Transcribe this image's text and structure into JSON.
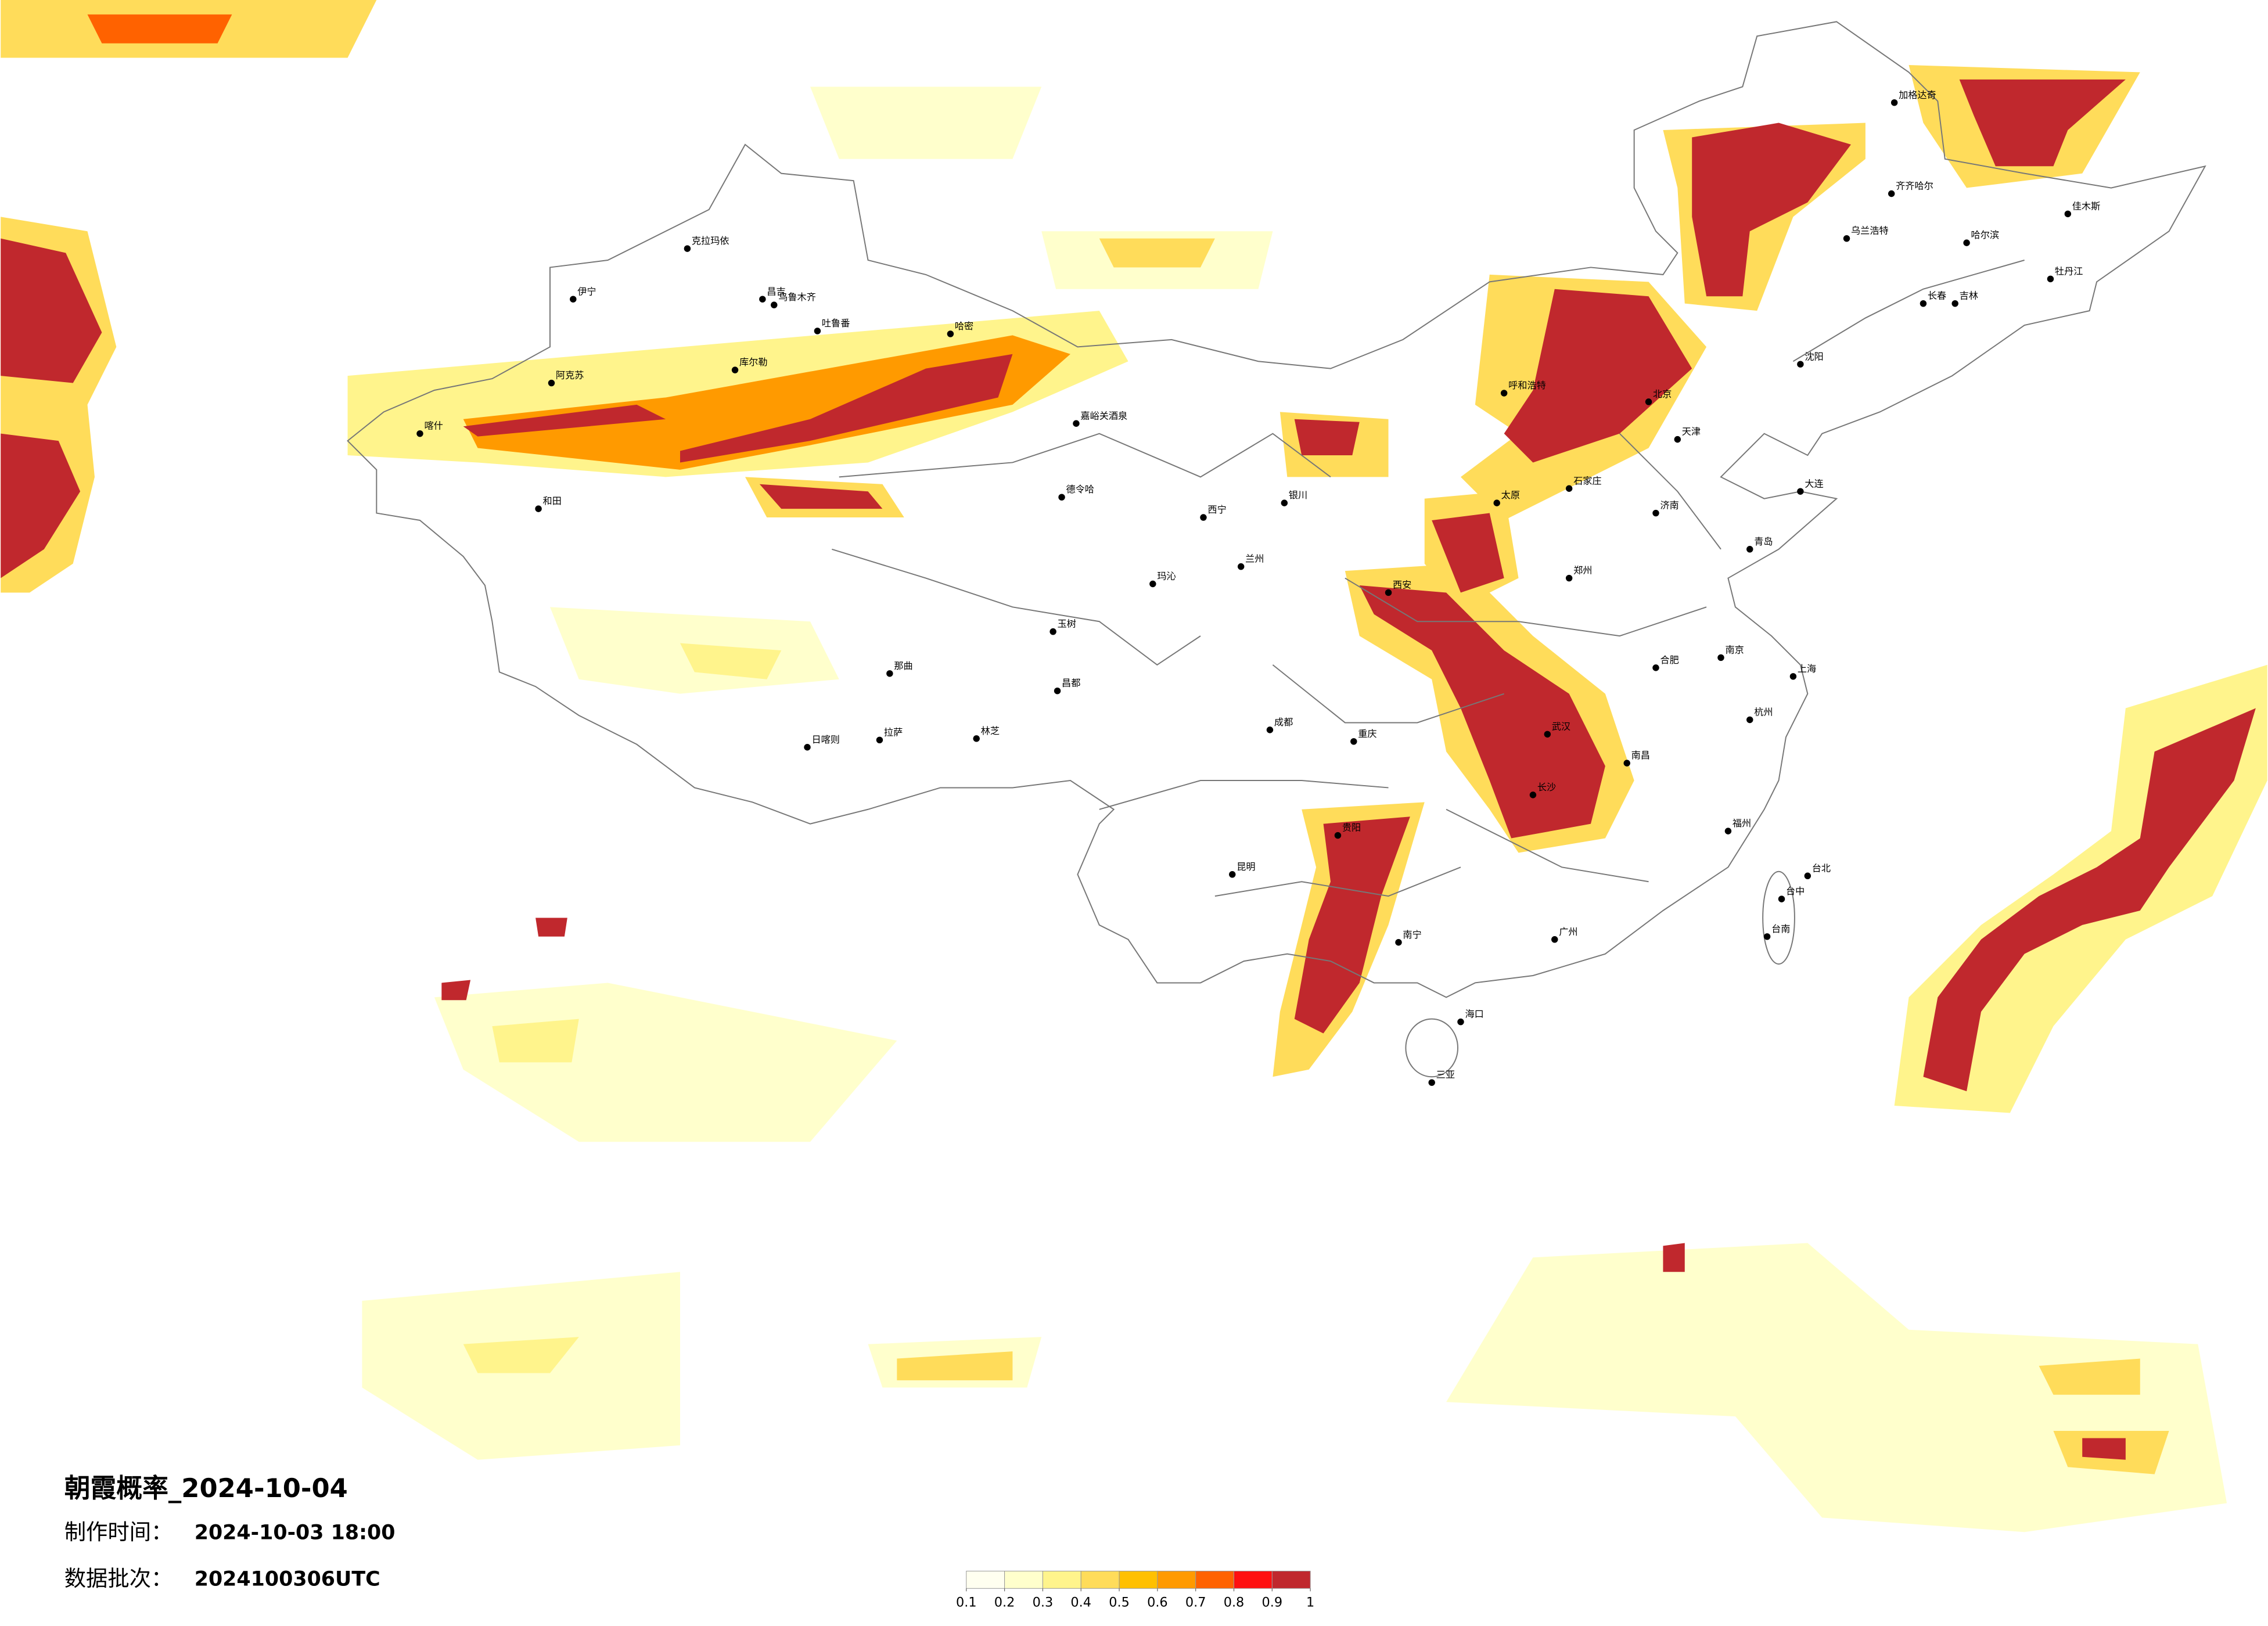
{
  "header": {
    "title": "朝霞概率_2024-10-04",
    "made_time_label": "制作时间：",
    "made_time": "2024-10-03 18:00",
    "batch_label": "数据批次：",
    "batch": "2024100306UTC"
  },
  "colorbar": {
    "colors": [
      "#fffff0",
      "#ffffcc",
      "#fff48c",
      "#ffdc5a",
      "#ffc000",
      "#ff9a00",
      "#ff6200",
      "#ff1010",
      "#c0282d"
    ],
    "ticks": [
      0.1,
      0.2,
      0.3,
      0.4,
      0.5,
      0.6,
      0.7,
      0.8,
      0.9,
      1
    ]
  },
  "cities": [
    "克拉玛依",
    "伊宁",
    "昌吉",
    "乌鲁木齐",
    "吐鲁番",
    "哈密",
    "库尔勒",
    "阿克苏",
    "喀什",
    "和田",
    "嘉峪关酒泉",
    "德令哈",
    "玛沁",
    "玉树",
    "那曲",
    "昌都",
    "日喀则",
    "拉萨",
    "林芝",
    "西宁",
    "兰州",
    "银川",
    "成都",
    "重庆",
    "贵阳",
    "昆明",
    "南宁",
    "广州",
    "福州",
    "台北",
    "台中",
    "台南",
    "海口",
    "三亚",
    "北京",
    "天津",
    "石家庄",
    "太原",
    "郑州",
    "武汉",
    "长沙",
    "南昌",
    "合肥",
    "南京",
    "上海",
    "杭州",
    "济南",
    "青岛",
    "沈阳",
    "长春",
    "哈尔滨",
    "呼和浩特",
    "西安",
    "乌兰浩特",
    "齐齐哈尔",
    "加格达奇",
    "佳木斯",
    "牡丹江",
    "吉林",
    "大连"
  ]
}
